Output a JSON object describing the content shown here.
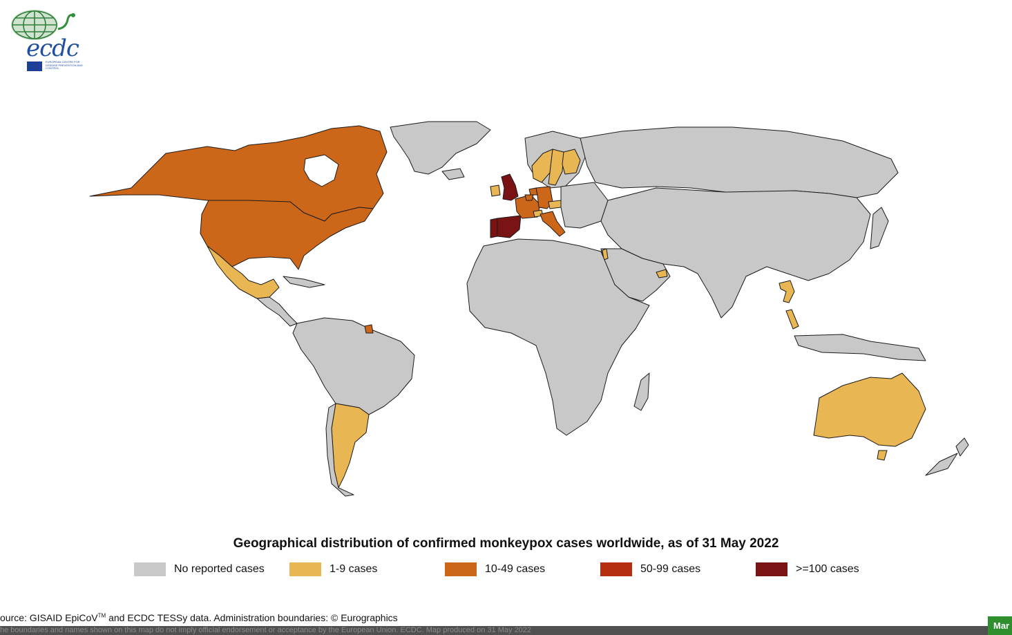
{
  "logo": {
    "wordmark": "ecdc",
    "organisation": "EUROPEAN CENTRE FOR DISEASE PREVENTION AND CONTROL"
  },
  "title": "Geographical distribution of confirmed monkeypox cases worldwide, as of 31 May 2022",
  "legend": [
    {
      "label": "No reported cases",
      "color": "#c8c8c8"
    },
    {
      "label": "1-9 cases",
      "color": "#e9b654"
    },
    {
      "label": "10-49 cases",
      "color": "#cc6618"
    },
    {
      "label": "50-99 cases",
      "color": "#b52e12"
    },
    {
      "label": ">=100 cases",
      "color": "#7a1414"
    }
  ],
  "source": {
    "prefix": "ource: GISAID EpiCoV",
    "tm": "TM",
    "suffix": " and ECDC TESSy data. Administration boundaries: © Eurographics"
  },
  "disclaimer": "he boundaries and names shown on this map do not imply official endorsement or acceptance by the European Union. ECDC. Map produced on 31 May 2022",
  "corner_tab": "Mar",
  "regions": [
    {
      "name": "Canada",
      "category": "10-49 cases"
    },
    {
      "name": "United States",
      "category": "10-49 cases"
    },
    {
      "name": "Mexico",
      "category": "1-9 cases"
    },
    {
      "name": "Argentina",
      "category": "1-9 cases"
    },
    {
      "name": "French Guiana",
      "category": "10-49 cases"
    },
    {
      "name": "United Kingdom",
      "category": ">=100 cases"
    },
    {
      "name": "Spain",
      "category": ">=100 cases"
    },
    {
      "name": "Portugal",
      "category": ">=100 cases"
    },
    {
      "name": "France",
      "category": "10-49 cases"
    },
    {
      "name": "Germany",
      "category": "10-49 cases"
    },
    {
      "name": "Italy",
      "category": "10-49 cases"
    },
    {
      "name": "Netherlands",
      "category": "10-49 cases"
    },
    {
      "name": "Belgium",
      "category": "10-49 cases"
    },
    {
      "name": "Ireland",
      "category": "1-9 cases"
    },
    {
      "name": "Norway",
      "category": "1-9 cases"
    },
    {
      "name": "Sweden",
      "category": "1-9 cases"
    },
    {
      "name": "Finland",
      "category": "1-9 cases"
    },
    {
      "name": "Czechia",
      "category": "1-9 cases"
    },
    {
      "name": "Switzerland",
      "category": "1-9 cases"
    },
    {
      "name": "Israel",
      "category": "1-9 cases"
    },
    {
      "name": "United Arab Emirates",
      "category": "1-9 cases"
    },
    {
      "name": "Thailand",
      "category": "1-9 cases"
    },
    {
      "name": "Malaysia",
      "category": "1-9 cases"
    },
    {
      "name": "Australia",
      "category": "1-9 cases"
    }
  ]
}
